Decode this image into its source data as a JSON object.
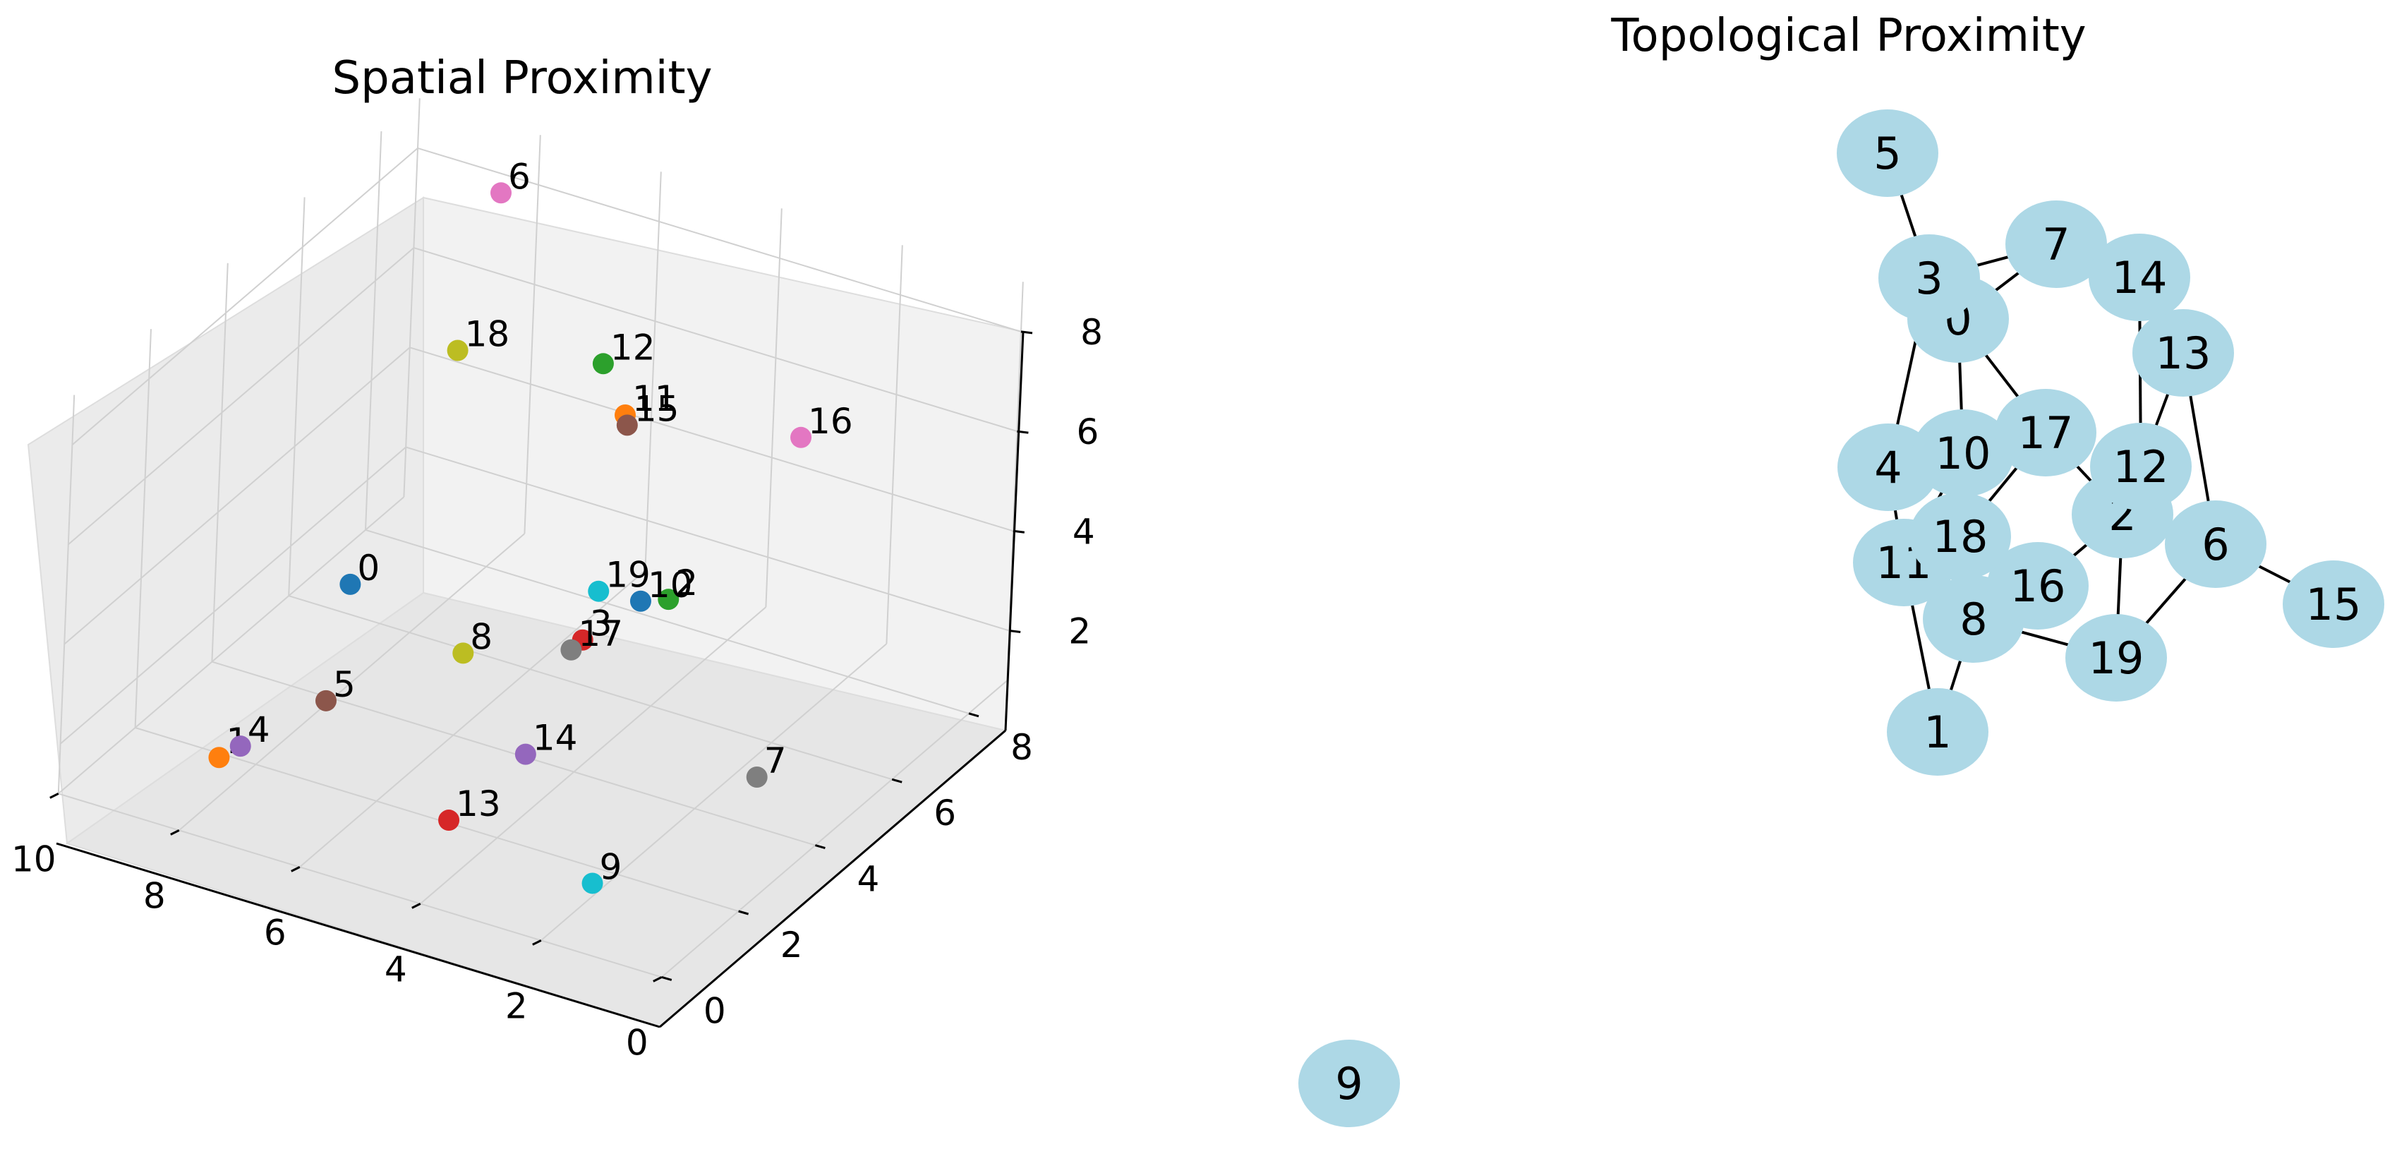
{
  "chart_data": [
    {
      "type": "scatter",
      "title": "Spatial Proximity",
      "xlabel": "",
      "ylabel": "",
      "zlabel": "",
      "xlim": [
        0,
        10
      ],
      "ylim": [
        0,
        9
      ],
      "zlim": [
        1,
        9
      ],
      "xticks": [
        "0",
        "2",
        "4",
        "6",
        "8",
        "10"
      ],
      "yticks": [
        "0",
        "2",
        "4",
        "6",
        "8"
      ],
      "zticks": [
        "2",
        "4",
        "6",
        "8"
      ],
      "grid": true,
      "points": [
        {
          "label": "0",
          "x": 9.0,
          "y": 6.0,
          "z": 1.6,
          "color": "#1f77b4"
        },
        {
          "label": "1",
          "x": 8.0,
          "y": 1.0,
          "z": 1.8,
          "color": "#ff7f0e"
        },
        {
          "label": "2",
          "x": 0.5,
          "y": 0.6,
          "z": 8.0,
          "color": "#2ca02c"
        },
        {
          "label": "3",
          "x": 2.0,
          "y": 0.8,
          "z": 6.5,
          "color": "#d62728"
        },
        {
          "label": "4",
          "x": 7.9,
          "y": 1.4,
          "z": 1.8,
          "color": "#9467bd"
        },
        {
          "label": "5",
          "x": 7.5,
          "y": 3.0,
          "z": 1.8,
          "color": "#8c564b"
        },
        {
          "label": "6",
          "x": 8.0,
          "y": 8.0,
          "z": 8.5,
          "color": "#e377c2"
        },
        {
          "label": "7",
          "x": 1.0,
          "y": 4.0,
          "z": 2.0,
          "color": "#7f7f7f"
        },
        {
          "label": "8",
          "x": 6.5,
          "y": 5.0,
          "z": 1.8,
          "color": "#bcbd22"
        },
        {
          "label": "9",
          "x": 1.5,
          "y": 0.5,
          "z": 2.0,
          "color": "#17becf"
        },
        {
          "label": "10",
          "x": 1.5,
          "y": 1.5,
          "z": 7.0,
          "color": "#1f77b4"
        },
        {
          "label": "11",
          "x": 4.0,
          "y": 5.0,
          "z": 7.5,
          "color": "#ff7f0e"
        },
        {
          "label": "12",
          "x": 5.0,
          "y": 6.0,
          "z": 7.5,
          "color": "#2ca02c"
        },
        {
          "label": "13",
          "x": 4.5,
          "y": 1.5,
          "z": 1.5,
          "color": "#d62728"
        },
        {
          "label": "14",
          "x": 4.5,
          "y": 3.5,
          "z": 1.5,
          "color": "#9467bd"
        },
        {
          "label": "15",
          "x": 3.9,
          "y": 4.9,
          "z": 7.4,
          "color": "#8c564b"
        },
        {
          "label": "16",
          "x": 0.5,
          "y": 4.0,
          "z": 9.0,
          "color": "#e377c2"
        },
        {
          "label": "17",
          "x": 2.0,
          "y": 0.5,
          "z": 6.5,
          "color": "#7f7f7f"
        },
        {
          "label": "18",
          "x": 8.0,
          "y": 7.0,
          "z": 6.0,
          "color": "#bcbd22"
        },
        {
          "label": "19",
          "x": 2.5,
          "y": 2.0,
          "z": 6.5,
          "color": "#17becf"
        }
      ]
    },
    {
      "type": "network",
      "title": "Topological Proximity",
      "node_color": "#add8e6",
      "edge_color": "#000000",
      "nodes": [
        "0",
        "1",
        "2",
        "3",
        "4",
        "5",
        "6",
        "7",
        "8",
        "9",
        "10",
        "11",
        "12",
        "13",
        "14",
        "15",
        "16",
        "17",
        "18",
        "19"
      ],
      "edges": [
        [
          "5",
          "3"
        ],
        [
          "3",
          "7"
        ],
        [
          "3",
          "0"
        ],
        [
          "0",
          "7"
        ],
        [
          "3",
          "4"
        ],
        [
          "0",
          "10"
        ],
        [
          "0",
          "17"
        ],
        [
          "14",
          "13"
        ],
        [
          "14",
          "12"
        ],
        [
          "13",
          "12"
        ],
        [
          "13",
          "6"
        ],
        [
          "12",
          "2"
        ],
        [
          "17",
          "2"
        ],
        [
          "17",
          "18"
        ],
        [
          "10",
          "11"
        ],
        [
          "4",
          "11"
        ],
        [
          "18",
          "8"
        ],
        [
          "2",
          "16"
        ],
        [
          "2",
          "19"
        ],
        [
          "2",
          "6"
        ],
        [
          "6",
          "15"
        ],
        [
          "6",
          "19"
        ],
        [
          "8",
          "19"
        ],
        [
          "8",
          "1"
        ],
        [
          "11",
          "1"
        ],
        [
          "18",
          "16"
        ]
      ]
    }
  ]
}
